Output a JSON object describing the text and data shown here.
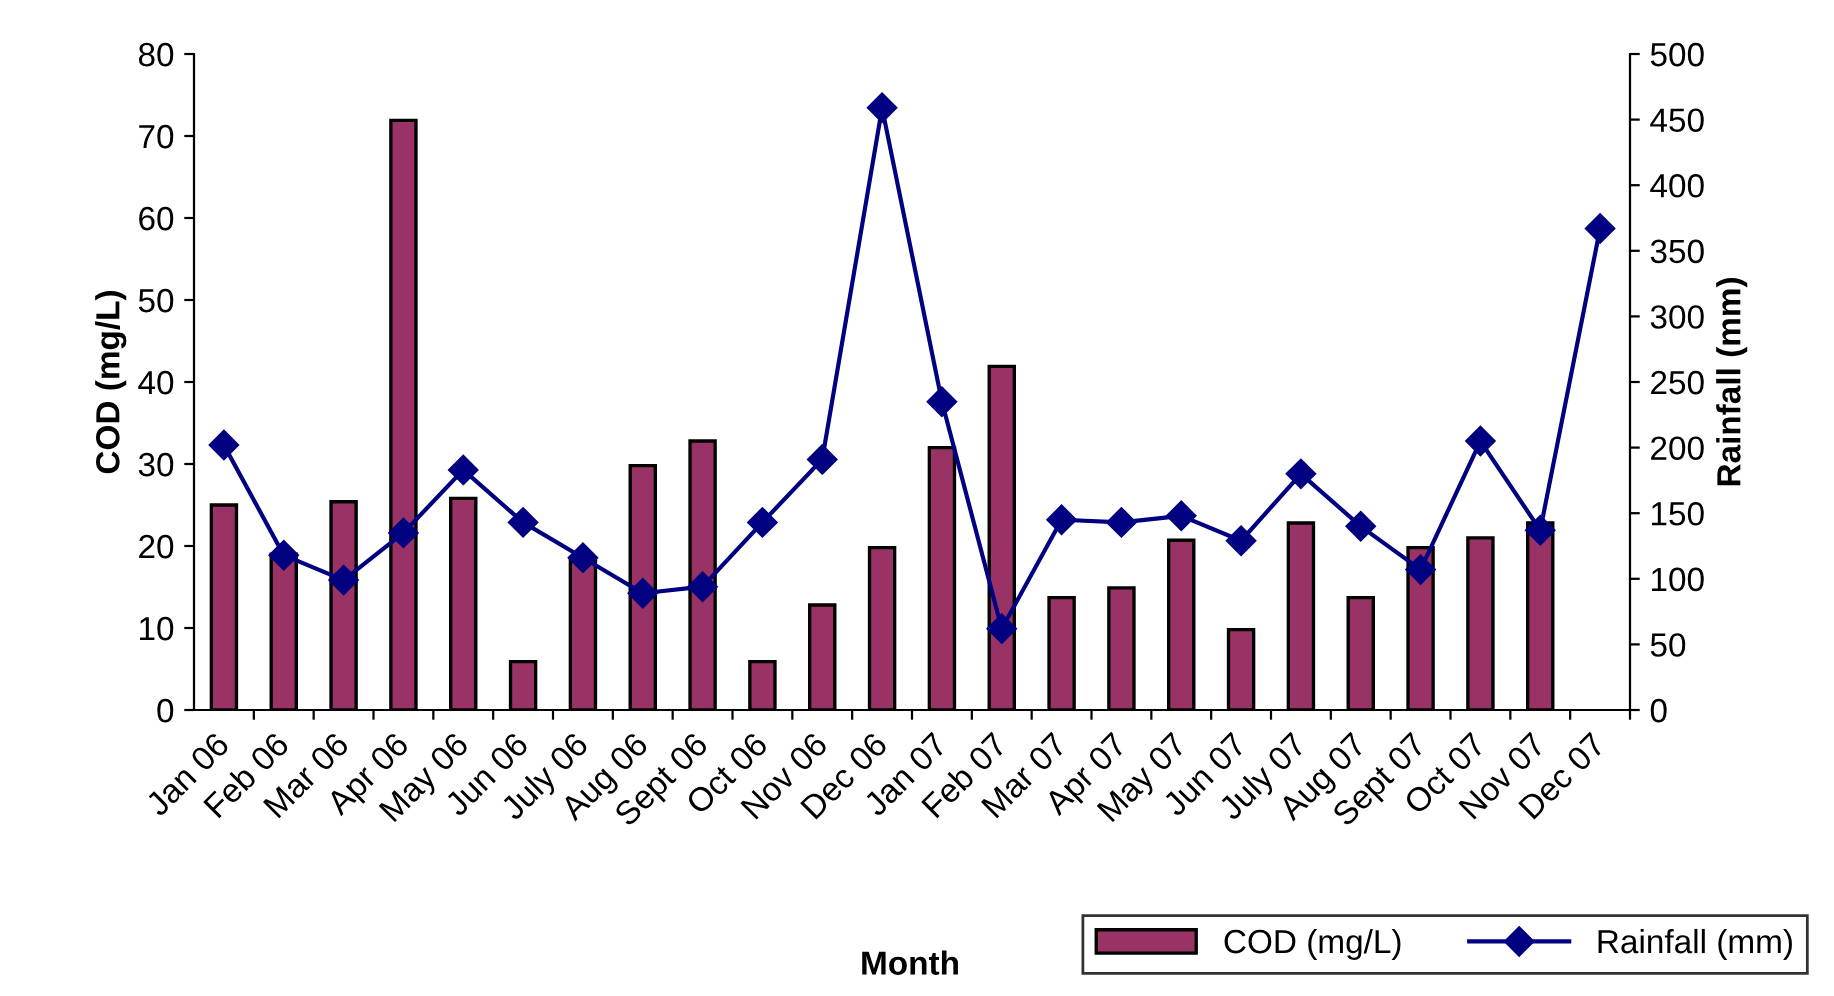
{
  "chart_data": {
    "type": "bar",
    "xlabel": "Month",
    "ylabel": "COD (mg/L)",
    "y2label": "Rainfall (mm)",
    "categories": [
      "Jan 06",
      "Feb 06",
      "Mar 06",
      "Apr 06",
      "May 06",
      "Jun 06",
      "July 06",
      "Aug 06",
      "Sept 06",
      "Oct 06",
      "Nov 06",
      "Dec 06",
      "Jan 07",
      "Feb 07",
      "Mar 07",
      "Apr 07",
      "May 07",
      "Jun 07",
      "July 07",
      "Aug 07",
      "Sept 07",
      "Oct 07",
      "Nov 07",
      "Dec 07"
    ],
    "series": [
      {
        "name": "COD (mg/L)",
        "color": "#993366",
        "values": [
          25,
          19,
          25.4,
          71.9,
          25.8,
          5.9,
          18.5,
          29.8,
          32.8,
          5.9,
          12.8,
          19.8,
          32,
          41.9,
          13.7,
          14.9,
          20.7,
          9.8,
          22.8,
          13.7,
          19.8,
          21,
          22.8,
          null
        ]
      },
      {
        "name": "Rainfall (mm)",
        "type": "line",
        "axis": "y2",
        "color": "#000080",
        "marker": "diamond",
        "values": [
          202,
          118,
          99,
          135,
          183,
          143,
          116,
          89,
          94,
          143,
          191,
          459,
          235,
          62,
          145,
          143,
          148,
          129,
          180,
          140,
          107,
          205,
          137,
          367
        ]
      }
    ],
    "ylim": [
      0,
      80
    ],
    "yticks": [
      0,
      10,
      20,
      30,
      40,
      50,
      60,
      70,
      80
    ],
    "y2lim": [
      0,
      500
    ],
    "y2ticks": [
      0,
      50,
      100,
      150,
      200,
      250,
      300,
      350,
      400,
      450,
      500
    ],
    "grid": false,
    "legend": "bottom right"
  }
}
